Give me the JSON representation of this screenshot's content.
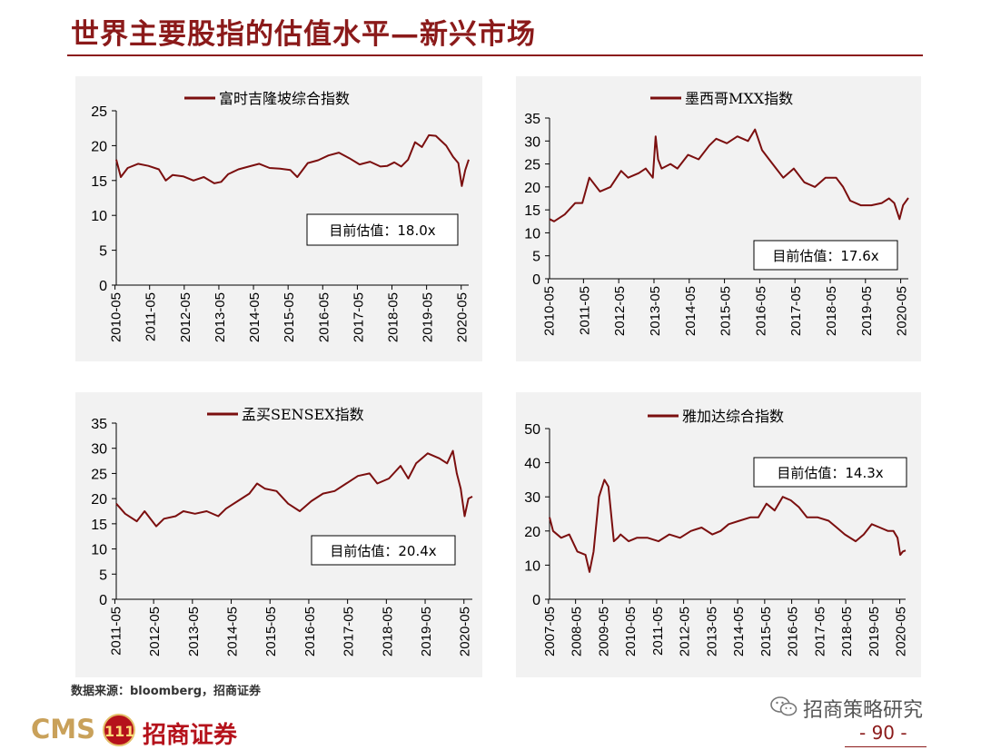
{
  "page": {
    "title": "世界主要股指的估值水平—新兴市场",
    "source": "数据来源：bloomberg，招商证券",
    "logo_text": "CMS",
    "logo_badge": "111",
    "logo_cn": "招商证券",
    "wechat": "招商策略研究",
    "page_number": "- 90 -",
    "colors": {
      "line": "#7b0f0f",
      "title": "#8b1a1a",
      "panel_bg": "#f2f2f2"
    }
  },
  "chart_data": [
    {
      "type": "line",
      "title": "",
      "legend": "富时吉隆坡综合指数",
      "annotation": "目前估值：18.0x",
      "ylim": [
        0,
        25
      ],
      "yticks": [
        0,
        5,
        10,
        15,
        20,
        25
      ],
      "xticks": [
        "2010-05",
        "2011-05",
        "2012-05",
        "2013-05",
        "2014-05",
        "2015-05",
        "2016-05",
        "2017-05",
        "2018-05",
        "2019-05",
        "2020-05"
      ],
      "xrange": [
        2010.37,
        2020.55
      ],
      "series": [
        {
          "name": "富时吉隆坡综合指数",
          "x": [
            2010.37,
            2010.5,
            2010.7,
            2011.0,
            2011.3,
            2011.6,
            2011.8,
            2012.0,
            2012.3,
            2012.6,
            2012.9,
            2013.2,
            2013.4,
            2013.6,
            2013.9,
            2014.2,
            2014.5,
            2014.8,
            2015.1,
            2015.4,
            2015.6,
            2015.9,
            2016.2,
            2016.5,
            2016.8,
            2017.1,
            2017.4,
            2017.7,
            2018.0,
            2018.2,
            2018.4,
            2018.6,
            2018.8,
            2019.0,
            2019.2,
            2019.4,
            2019.6,
            2019.9,
            2020.1,
            2020.25,
            2020.35,
            2020.45,
            2020.55
          ],
          "values": [
            18.0,
            15.5,
            16.8,
            17.4,
            17.1,
            16.6,
            15.0,
            15.8,
            15.6,
            15.0,
            15.5,
            14.6,
            14.8,
            15.9,
            16.6,
            17.0,
            17.4,
            16.8,
            16.7,
            16.5,
            15.5,
            17.5,
            17.9,
            18.6,
            19.0,
            18.2,
            17.3,
            17.7,
            17.0,
            17.1,
            17.6,
            17.0,
            18.0,
            20.5,
            19.8,
            21.5,
            21.4,
            20.0,
            18.4,
            17.5,
            14.2,
            16.5,
            18.0
          ]
        }
      ]
    },
    {
      "type": "line",
      "title": "",
      "legend": "墨西哥MXX指数",
      "annotation": "目前估值：17.6x",
      "ylim": [
        0,
        35
      ],
      "yticks": [
        0,
        5,
        10,
        15,
        20,
        25,
        30,
        35
      ],
      "xticks": [
        "2010-05",
        "2011-05",
        "2012-05",
        "2013-05",
        "2014-05",
        "2015-05",
        "2016-05",
        "2017-05",
        "2018-05",
        "2019-05",
        "2020-05"
      ],
      "xrange": [
        2010.37,
        2020.55
      ],
      "series": [
        {
          "name": "墨西哥MXX指数",
          "x": [
            2010.37,
            2010.5,
            2010.8,
            2011.1,
            2011.3,
            2011.5,
            2011.8,
            2012.1,
            2012.4,
            2012.6,
            2012.9,
            2013.1,
            2013.3,
            2013.38,
            2013.45,
            2013.55,
            2013.8,
            2014.0,
            2014.3,
            2014.6,
            2014.9,
            2015.1,
            2015.4,
            2015.7,
            2016.0,
            2016.2,
            2016.4,
            2016.6,
            2016.8,
            2017.0,
            2017.3,
            2017.6,
            2017.9,
            2018.2,
            2018.5,
            2018.7,
            2018.9,
            2019.2,
            2019.5,
            2019.8,
            2020.0,
            2020.15,
            2020.3,
            2020.4,
            2020.55
          ],
          "values": [
            13,
            12.5,
            14,
            16.5,
            16.5,
            22,
            19,
            20,
            23.5,
            22,
            23,
            24,
            22,
            31,
            26,
            24,
            25,
            24,
            27,
            26,
            29,
            30.5,
            29.5,
            31,
            30,
            32.5,
            28,
            26,
            24,
            22,
            24,
            21,
            20,
            22,
            22,
            20,
            17,
            16,
            16,
            16.5,
            17.5,
            16.5,
            13,
            16,
            17.6
          ]
        }
      ]
    },
    {
      "type": "line",
      "title": "",
      "legend": "孟买SENSEX指数",
      "annotation": "目前估值：20.4x",
      "ylim": [
        0,
        35
      ],
      "yticks": [
        0,
        5,
        10,
        15,
        20,
        25,
        30,
        35
      ],
      "xticks": [
        "2011-05",
        "2012-05",
        "2013-05",
        "2014-05",
        "2015-05",
        "2016-05",
        "2017-05",
        "2018-05",
        "2019-05",
        "2020-05"
      ],
      "xrange": [
        2011.37,
        2020.55
      ],
      "series": [
        {
          "name": "孟买SENSEX指数",
          "x": [
            2011.37,
            2011.6,
            2011.9,
            2012.1,
            2012.4,
            2012.6,
            2012.9,
            2013.1,
            2013.4,
            2013.7,
            2014.0,
            2014.2,
            2014.5,
            2014.8,
            2015.0,
            2015.2,
            2015.5,
            2015.8,
            2016.1,
            2016.4,
            2016.7,
            2017.0,
            2017.3,
            2017.6,
            2017.9,
            2018.1,
            2018.4,
            2018.7,
            2018.9,
            2019.1,
            2019.4,
            2019.7,
            2019.9,
            2020.05,
            2020.15,
            2020.25,
            2020.35,
            2020.45,
            2020.55
          ],
          "values": [
            19,
            17,
            15.5,
            17.5,
            14.5,
            16,
            16.5,
            17.5,
            17,
            17.5,
            16.5,
            18,
            19.5,
            21,
            23,
            22,
            21.5,
            19,
            17.5,
            19.5,
            21,
            21.5,
            23,
            24.5,
            25,
            23,
            24,
            26.5,
            24,
            27,
            29,
            28,
            27,
            29.5,
            25,
            22,
            16.5,
            20,
            20.4
          ]
        }
      ]
    },
    {
      "type": "line",
      "title": "",
      "legend": "雅加达综合指数",
      "annotation": "目前估值：14.3x",
      "ylim": [
        0,
        50
      ],
      "yticks": [
        0,
        10,
        20,
        30,
        40,
        50
      ],
      "xticks": [
        "2007-05",
        "2008-05",
        "2009-05",
        "2010-05",
        "2011-05",
        "2012-05",
        "2013-05",
        "2014-05",
        "2015-05",
        "2016-05",
        "2017-05",
        "2018-05",
        "2019-05",
        "2020-05"
      ],
      "xrange": [
        2007.37,
        2020.55
      ],
      "series": [
        {
          "name": "雅加达综合指数",
          "x": [
            2007.37,
            2007.5,
            2007.8,
            2008.1,
            2008.4,
            2008.7,
            2008.85,
            2009.0,
            2009.2,
            2009.4,
            2009.55,
            2009.75,
            2009.9,
            2010.0,
            2010.3,
            2010.6,
            2011.0,
            2011.4,
            2011.8,
            2012.2,
            2012.6,
            2013.0,
            2013.4,
            2013.7,
            2014.0,
            2014.4,
            2014.8,
            2015.1,
            2015.4,
            2015.7,
            2016.0,
            2016.3,
            2016.6,
            2016.9,
            2017.3,
            2017.7,
            2018.0,
            2018.3,
            2018.7,
            2019.0,
            2019.3,
            2019.6,
            2019.9,
            2020.1,
            2020.25,
            2020.35,
            2020.45,
            2020.55
          ],
          "values": [
            24,
            20,
            18,
            19,
            14,
            13,
            8,
            14,
            30,
            35,
            33,
            17,
            18,
            19,
            17,
            18,
            18,
            17,
            19,
            18,
            20,
            21,
            19,
            20,
            22,
            23,
            24,
            24,
            28,
            26,
            30,
            29,
            27,
            24,
            24,
            23,
            21,
            19,
            17,
            19,
            22,
            21,
            20,
            20,
            18,
            13,
            14,
            14.3
          ]
        }
      ]
    }
  ]
}
